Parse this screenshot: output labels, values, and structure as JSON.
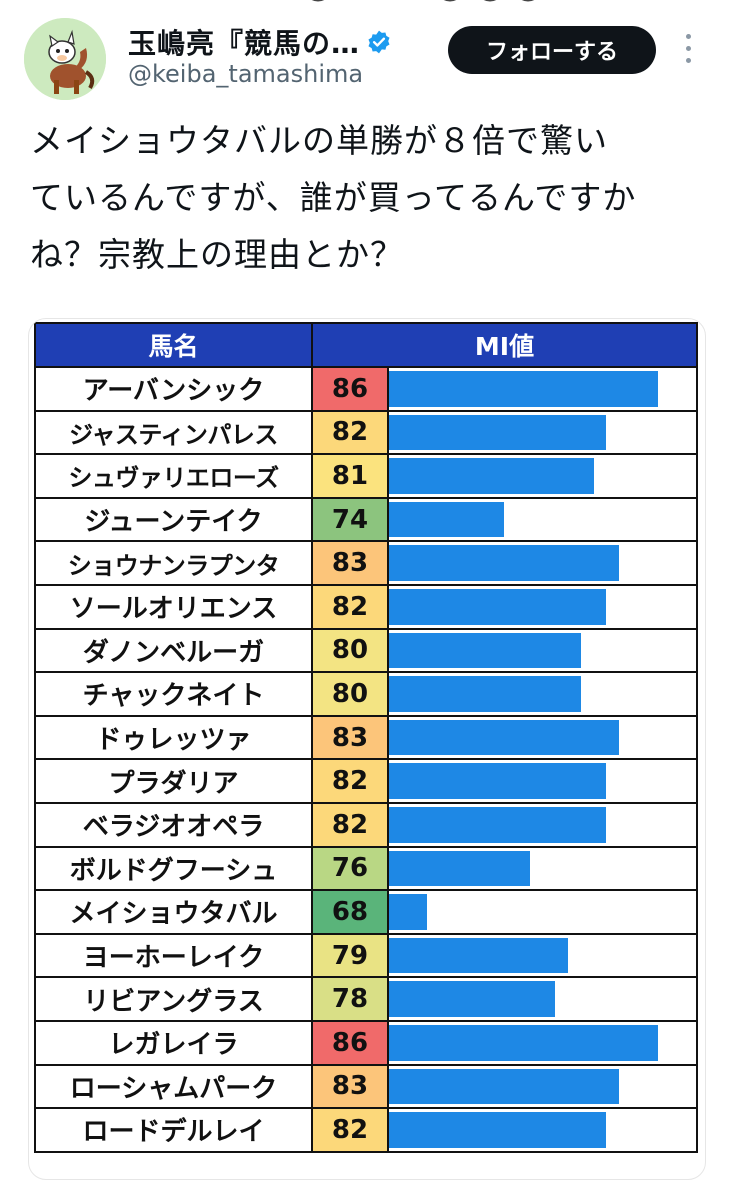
{
  "header": {
    "display_name": "玉嶋亮『競馬の…",
    "handle": "@keiba_tamashima",
    "follow_label": "フォローする"
  },
  "tweet": {
    "text": "メイショウタバルの単勝が８倍で驚い\nているんですが、誰が買ってるんですか\nね？宗教上の理由とか？"
  },
  "chart_data": {
    "type": "table",
    "columns": [
      "馬名",
      "MI値"
    ],
    "scale_min": 65,
    "scale_max": 89,
    "bar_color": "#1e88e5",
    "rows": [
      {
        "name": "アーバンシック",
        "value": 86,
        "color": "#f06a6a"
      },
      {
        "name": "ジャスティンパレス",
        "value": 82,
        "color": "#fcd87a"
      },
      {
        "name": "シュヴァリエローズ",
        "value": 81,
        "color": "#fbe37e"
      },
      {
        "name": "ジューンテイク",
        "value": 74,
        "color": "#8cc47e"
      },
      {
        "name": "ショウナンラプンタ",
        "value": 83,
        "color": "#fcc57a"
      },
      {
        "name": "ソールオリエンス",
        "value": 82,
        "color": "#fcd87a"
      },
      {
        "name": "ダノンベルーガ",
        "value": 80,
        "color": "#f3e483"
      },
      {
        "name": "チャックネイト",
        "value": 80,
        "color": "#f3e483"
      },
      {
        "name": "ドゥレッツァ",
        "value": 83,
        "color": "#fcc57a"
      },
      {
        "name": "プラダリア",
        "value": 82,
        "color": "#fcd87a"
      },
      {
        "name": "ベラジオオペラ",
        "value": 82,
        "color": "#fcd87a"
      },
      {
        "name": "ボルドグフーシュ",
        "value": 76,
        "color": "#b9d784"
      },
      {
        "name": "メイショウタバル",
        "value": 68,
        "color": "#5ab47a"
      },
      {
        "name": "ヨーホーレイク",
        "value": 79,
        "color": "#e9e384"
      },
      {
        "name": "リビアングラス",
        "value": 78,
        "color": "#d9df86"
      },
      {
        "name": "レガレイラ",
        "value": 86,
        "color": "#f06a6a"
      },
      {
        "name": "ローシャムパーク",
        "value": 83,
        "color": "#fcc57a"
      },
      {
        "name": "ロードデルレイ",
        "value": 82,
        "color": "#fcd87a"
      }
    ]
  }
}
